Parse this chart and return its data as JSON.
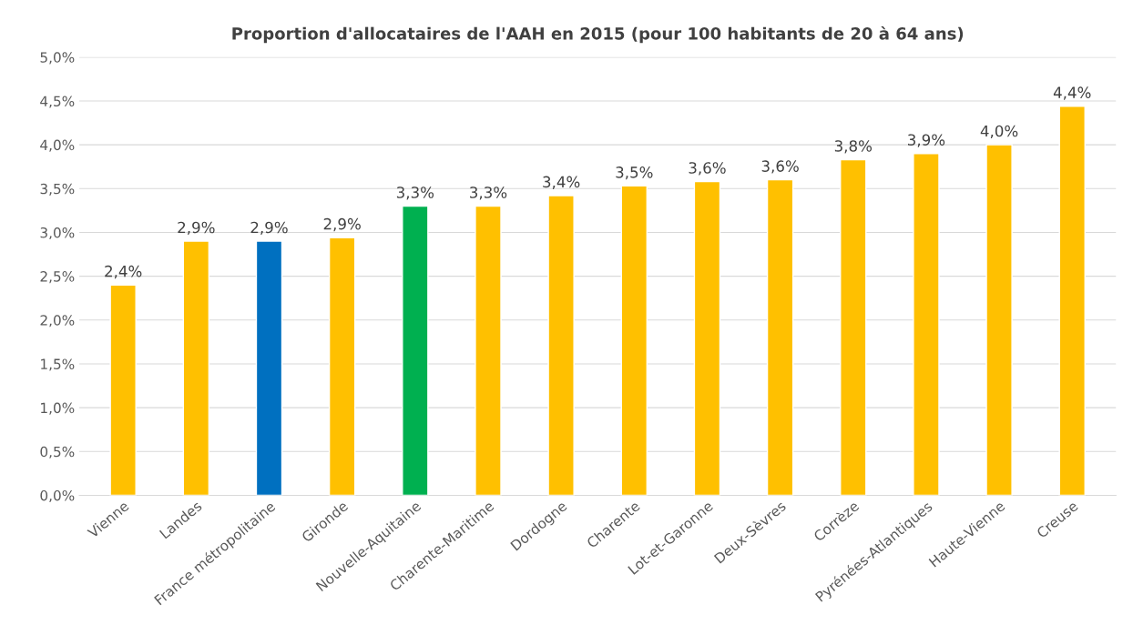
{
  "chart_data": {
    "type": "bar",
    "title": "Proportion d'allocataires de l'AAH en 2015 (pour 100 habitants de 20 à 64 ans)",
    "categories": [
      "Vienne",
      "Landes",
      "France métropolitaine",
      "Gironde",
      "Nouvelle-Aquitaine",
      "Charente-Maritime",
      "Dordogne",
      "Charente",
      "Lot-et-Garonne",
      "Deux-Sèvres",
      "Corrèze",
      "Pyrénées-Atlantiques",
      "Haute-Vienne",
      "Creuse"
    ],
    "values": [
      2.4,
      2.9,
      2.9,
      2.94,
      3.3,
      3.3,
      3.42,
      3.53,
      3.58,
      3.6,
      3.83,
      3.9,
      4.0,
      4.44
    ],
    "value_labels": [
      "2,4%",
      "2,9%",
      "2,9%",
      "2,9%",
      "3,3%",
      "3,3%",
      "3,4%",
      "3,5%",
      "3,6%",
      "3,6%",
      "3,8%",
      "3,9%",
      "4,0%",
      "4,4%"
    ],
    "colors": [
      "#ffc000",
      "#ffc000",
      "#0070c0",
      "#ffc000",
      "#00b050",
      "#ffc000",
      "#ffc000",
      "#ffc000",
      "#ffc000",
      "#ffc000",
      "#ffc000",
      "#ffc000",
      "#ffc000",
      "#ffc000"
    ],
    "ylim": [
      0,
      5
    ],
    "yticks": [
      {
        "value": 0,
        "label": "0,0%"
      },
      {
        "value": 0.5,
        "label": "0,5%"
      },
      {
        "value": 1,
        "label": "1,0%"
      },
      {
        "value": 1.5,
        "label": "1,5%"
      },
      {
        "value": 2,
        "label": "2,0%"
      },
      {
        "value": 2.5,
        "label": "2,5%"
      },
      {
        "value": 3,
        "label": "3,0%"
      },
      {
        "value": 3.5,
        "label": "3,5%"
      },
      {
        "value": 4,
        "label": "4,0%"
      },
      {
        "value": 4.5,
        "label": "4,5%"
      },
      {
        "value": 5,
        "label": "5,0%"
      }
    ],
    "grid": "y"
  }
}
